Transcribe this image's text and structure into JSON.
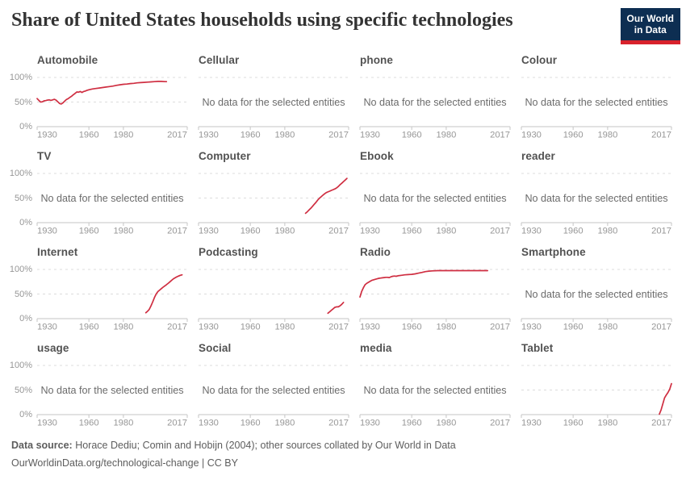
{
  "header": {
    "title": "Share of United States households using specific technologies",
    "logo_line1": "Our World",
    "logo_line2": "in Data"
  },
  "colors": {
    "line": "#cf2e41",
    "grid": "#dcdcdc",
    "axis": "#c6c6c6",
    "tick_label": "#979797",
    "panel_title": "#525252",
    "no_data_text": "#6b6b6b",
    "title": "#333333",
    "logo_bg": "#0d2e52",
    "logo_accent": "#d8222c"
  },
  "chart_data": {
    "type": "line",
    "title": "Share of United States households using specific technologies",
    "layout": "small-multiples 4x4, shared axes, y labels on left column only",
    "x_domain": [
      1930,
      2017
    ],
    "x_ticks": [
      "1930",
      "1960",
      "1980",
      "2017"
    ],
    "x_tick_years": [
      1930,
      1960,
      1980,
      2017
    ],
    "y_ticks": [
      "100%",
      "50%",
      "0%"
    ],
    "ylim": [
      0,
      100
    ],
    "grid": "horizontal dashed gridlines at 50% and 100%",
    "no_data_label": "No data for the selected entities",
    "panels": [
      {
        "title": "Automobile",
        "has_data": true,
        "points": [
          [
            1930,
            57
          ],
          [
            1931,
            53.5
          ],
          [
            1932,
            50
          ],
          [
            1933,
            50.5
          ],
          [
            1934,
            52.5
          ],
          [
            1935,
            53
          ],
          [
            1936,
            54
          ],
          [
            1937,
            54.5
          ],
          [
            1938,
            53.5
          ],
          [
            1939,
            54.5
          ],
          [
            1940,
            55.5
          ],
          [
            1941,
            54
          ],
          [
            1942,
            50.5
          ],
          [
            1943,
            47
          ],
          [
            1944,
            46
          ],
          [
            1945,
            48.5
          ],
          [
            1946,
            52
          ],
          [
            1947,
            55
          ],
          [
            1948,
            57
          ],
          [
            1949,
            59.5
          ],
          [
            1950,
            62
          ],
          [
            1951,
            65
          ],
          [
            1952,
            67.5
          ],
          [
            1953,
            70.5
          ],
          [
            1954,
            70
          ],
          [
            1955,
            71.5
          ],
          [
            1956,
            69.5
          ],
          [
            1957,
            71.5
          ],
          [
            1958,
            72.5
          ],
          [
            1959,
            74
          ],
          [
            1960,
            75
          ],
          [
            1962,
            76.5
          ],
          [
            1964,
            77.5
          ],
          [
            1966,
            78.5
          ],
          [
            1968,
            79.5
          ],
          [
            1970,
            80.5
          ],
          [
            1972,
            81.5
          ],
          [
            1974,
            82.5
          ],
          [
            1976,
            84
          ],
          [
            1978,
            85
          ],
          [
            1980,
            86
          ],
          [
            1982,
            86.5
          ],
          [
            1984,
            87.5
          ],
          [
            1986,
            88
          ],
          [
            1988,
            89
          ],
          [
            1990,
            89.5
          ],
          [
            1992,
            90
          ],
          [
            1994,
            90.5
          ],
          [
            1996,
            91
          ],
          [
            1998,
            91.5
          ],
          [
            2000,
            92
          ],
          [
            2002,
            92
          ],
          [
            2004,
            91.5
          ],
          [
            2005,
            91.5
          ]
        ]
      },
      {
        "title": "Cellular",
        "has_data": false,
        "points": []
      },
      {
        "title": "phone",
        "has_data": false,
        "points": []
      },
      {
        "title": "Colour",
        "has_data": false,
        "points": []
      },
      {
        "title": "TV",
        "has_data": false,
        "points": []
      },
      {
        "title": "Computer",
        "has_data": true,
        "points": [
          [
            1992,
            19
          ],
          [
            1993,
            22
          ],
          [
            1994,
            25.5
          ],
          [
            1995,
            29
          ],
          [
            1996,
            33
          ],
          [
            1997,
            37
          ],
          [
            1998,
            41
          ],
          [
            1999,
            45.5
          ],
          [
            2000,
            49.5
          ],
          [
            2001,
            52.5
          ],
          [
            2002,
            55.5
          ],
          [
            2003,
            58.5
          ],
          [
            2004,
            61
          ],
          [
            2005,
            62.5
          ],
          [
            2006,
            64
          ],
          [
            2007,
            65.5
          ],
          [
            2008,
            67
          ],
          [
            2009,
            68.5
          ],
          [
            2010,
            70.5
          ],
          [
            2011,
            73.5
          ],
          [
            2012,
            77
          ],
          [
            2013,
            80
          ],
          [
            2014,
            83.5
          ],
          [
            2015,
            86.5
          ],
          [
            2016,
            90
          ]
        ]
      },
      {
        "title": "Ebook",
        "has_data": false,
        "points": []
      },
      {
        "title": "reader",
        "has_data": false,
        "points": []
      },
      {
        "title": "Internet",
        "has_data": true,
        "points": [
          [
            1993,
            12
          ],
          [
            1994,
            15
          ],
          [
            1995,
            19
          ],
          [
            1996,
            26
          ],
          [
            1997,
            34
          ],
          [
            1998,
            43
          ],
          [
            1999,
            50
          ],
          [
            2000,
            55
          ],
          [
            2001,
            58
          ],
          [
            2002,
            61
          ],
          [
            2003,
            64
          ],
          [
            2004,
            66.5
          ],
          [
            2005,
            69
          ],
          [
            2006,
            72
          ],
          [
            2007,
            75
          ],
          [
            2008,
            78
          ],
          [
            2009,
            81
          ],
          [
            2010,
            83
          ],
          [
            2011,
            85
          ],
          [
            2012,
            86.5
          ],
          [
            2013,
            88
          ],
          [
            2014,
            89
          ]
        ]
      },
      {
        "title": "Podcasting",
        "has_data": true,
        "points": [
          [
            2005,
            11
          ],
          [
            2006,
            14
          ],
          [
            2007,
            17
          ],
          [
            2008,
            20
          ],
          [
            2009,
            23
          ],
          [
            2010,
            24
          ],
          [
            2011,
            24
          ],
          [
            2012,
            26
          ],
          [
            2013,
            29
          ],
          [
            2014,
            33
          ]
        ]
      },
      {
        "title": "Radio",
        "has_data": true,
        "points": [
          [
            1930,
            44
          ],
          [
            1931,
            55
          ],
          [
            1932,
            63
          ],
          [
            1933,
            69
          ],
          [
            1934,
            72
          ],
          [
            1935,
            74
          ],
          [
            1936,
            76
          ],
          [
            1937,
            78
          ],
          [
            1938,
            79
          ],
          [
            1939,
            80
          ],
          [
            1940,
            81
          ],
          [
            1941,
            82
          ],
          [
            1942,
            82.5
          ],
          [
            1943,
            83
          ],
          [
            1944,
            83.5
          ],
          [
            1945,
            84
          ],
          [
            1946,
            84
          ],
          [
            1947,
            83.5
          ],
          [
            1948,
            85
          ],
          [
            1949,
            86
          ],
          [
            1950,
            86.5
          ],
          [
            1951,
            86
          ],
          [
            1952,
            87
          ],
          [
            1954,
            88
          ],
          [
            1956,
            89
          ],
          [
            1958,
            89.5
          ],
          [
            1960,
            90
          ],
          [
            1962,
            91
          ],
          [
            1964,
            92.5
          ],
          [
            1966,
            94
          ],
          [
            1968,
            95.5
          ],
          [
            1970,
            96.5
          ],
          [
            1972,
            97
          ],
          [
            1975,
            97.5
          ],
          [
            1980,
            97.5
          ],
          [
            1985,
            97.5
          ],
          [
            1990,
            97.5
          ],
          [
            1995,
            97.5
          ],
          [
            2000,
            97.5
          ],
          [
            2004,
            97.5
          ]
        ]
      },
      {
        "title": "Smartphone",
        "has_data": false,
        "points": []
      },
      {
        "title": "usage",
        "has_data": false,
        "points": []
      },
      {
        "title": "Social",
        "has_data": false,
        "points": []
      },
      {
        "title": "media",
        "has_data": false,
        "points": []
      },
      {
        "title": "Tablet",
        "has_data": true,
        "points": [
          [
            2010,
            1
          ],
          [
            2011,
            10
          ],
          [
            2012,
            22
          ],
          [
            2013,
            34
          ],
          [
            2014,
            40
          ],
          [
            2015,
            45
          ],
          [
            2016,
            52
          ],
          [
            2017,
            63
          ]
        ]
      }
    ]
  },
  "footer": {
    "source_label": "Data source:",
    "source_text": " Horace Dediu; Comin and Hobijn (2004); other sources collated by Our World in Data",
    "attribution": "OurWorldinData.org/technological-change | CC BY"
  }
}
